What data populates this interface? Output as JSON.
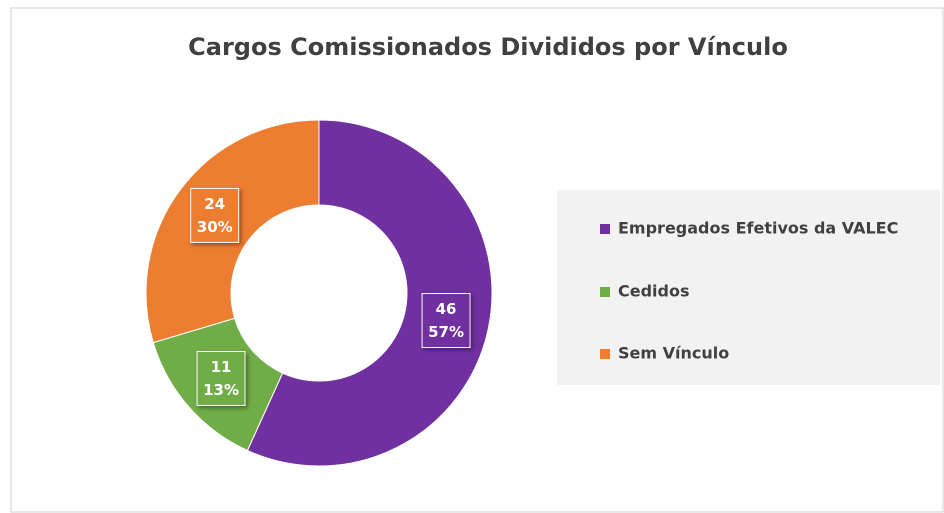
{
  "chart_data": {
    "type": "donut",
    "title": "Cargos Comissionados  Divididos por Vínculo",
    "categories": [
      "Empregados Efetivos da VALEC",
      "Cedidos",
      "Sem Vínculo"
    ],
    "values": [
      46,
      11,
      24
    ],
    "percentages": [
      57,
      13,
      30
    ],
    "percentage_labels": [
      "57%",
      "13%",
      "30%"
    ],
    "colors": [
      "#7030a0",
      "#70ad47",
      "#ed7d31"
    ],
    "legend": "right"
  }
}
